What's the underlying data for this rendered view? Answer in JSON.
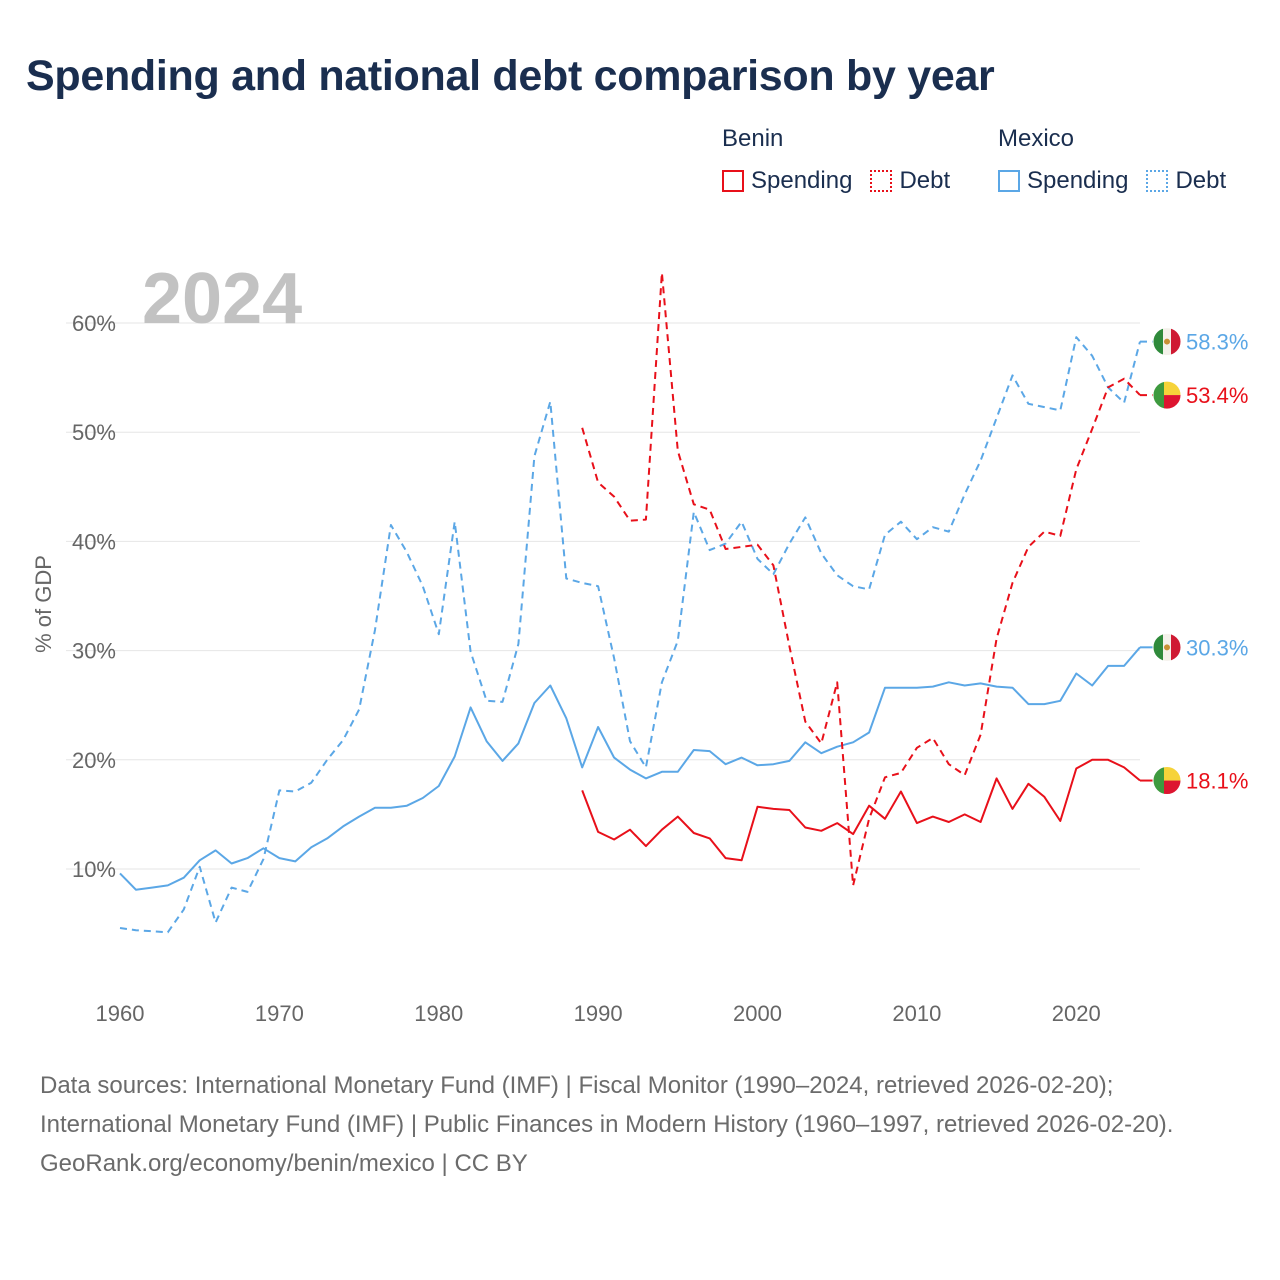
{
  "title": "Spending and national debt comparison by year",
  "legend": {
    "groups": [
      {
        "country": "Benin",
        "color": "#e8101a",
        "items": [
          {
            "label": "Spending",
            "style": "solid"
          },
          {
            "label": "Debt",
            "style": "dotted"
          }
        ]
      },
      {
        "country": "Mexico",
        "color": "#5ba7e6",
        "items": [
          {
            "label": "Spending",
            "style": "solid"
          },
          {
            "label": "Debt",
            "style": "dotted"
          }
        ]
      }
    ]
  },
  "footer": {
    "sources": "Data sources: International Monetary Fund (IMF) | Fiscal Monitor (1990–2024, retrieved 2026-02-20); International Monetary Fund (IMF) | Public Finances in Modern History (1960–1997, retrieved 2026-02-20).",
    "credit": "GeoRank.org/economy/benin/mexico | CC BY"
  },
  "chart_data": {
    "type": "line",
    "year_label": "2024",
    "ylabel": "% of GDP",
    "xlim": [
      1960,
      2024
    ],
    "ylim": [
      0,
      62
    ],
    "x_ticks": [
      "1960",
      "1970",
      "1980",
      "1990",
      "2000",
      "2010",
      "2020"
    ],
    "y_ticks": [
      "10%",
      "20%",
      "30%",
      "40%",
      "50%",
      "60%"
    ],
    "grid": true,
    "series": [
      {
        "name": "Mexico Debt",
        "country": "Mexico",
        "metric": "Debt",
        "color": "#5ba7e6",
        "dash": true,
        "start_year": 1960,
        "values": [
          4.6,
          4.4,
          4.3,
          4.2,
          6.3,
          10.2,
          5.1,
          8.3,
          7.9,
          10.9,
          17.2,
          17.1,
          17.9,
          20.0,
          21.8,
          24.6,
          31.9,
          41.5,
          39.0,
          35.9,
          31.5,
          41.8,
          29.9,
          25.4,
          25.3,
          30.6,
          47.8,
          52.8,
          36.6,
          36.2,
          35.9,
          29.3,
          21.7,
          19.3,
          27.1,
          30.9,
          42.7,
          39.2,
          39.8,
          41.8,
          38.4,
          37.0,
          39.8,
          42.2,
          38.9,
          36.9,
          35.9,
          35.6,
          40.6,
          41.8,
          40.2,
          41.3,
          40.9,
          44.3,
          47.4,
          51.3,
          55.2,
          52.6,
          52.3,
          52.0,
          58.7,
          57.0,
          54.1,
          52.7,
          58.3
        ]
      },
      {
        "name": "Mexico Spending",
        "country": "Mexico",
        "metric": "Spending",
        "color": "#5ba7e6",
        "dash": false,
        "start_year": 1960,
        "values": [
          9.6,
          8.1,
          8.3,
          8.5,
          9.2,
          10.8,
          11.7,
          10.5,
          11.0,
          11.9,
          11.0,
          10.7,
          12.0,
          12.8,
          13.9,
          14.8,
          15.6,
          15.6,
          15.8,
          16.5,
          17.6,
          20.3,
          24.8,
          21.7,
          19.9,
          21.5,
          25.2,
          26.8,
          23.8,
          19.3,
          23.0,
          20.2,
          19.1,
          18.3,
          18.9,
          18.9,
          20.9,
          20.8,
          19.6,
          20.2,
          19.5,
          19.6,
          19.9,
          21.6,
          20.6,
          21.2,
          21.6,
          22.5,
          26.6,
          26.6,
          26.6,
          26.7,
          27.1,
          26.8,
          27.0,
          26.7,
          26.6,
          25.1,
          25.1,
          25.4,
          27.9,
          26.8,
          28.6,
          28.6,
          30.3
        ]
      },
      {
        "name": "Benin Debt",
        "country": "Benin",
        "metric": "Debt",
        "color": "#e8101a",
        "dash": true,
        "start_year": 1989,
        "values": [
          50.4,
          45.4,
          44.1,
          41.9,
          42.0,
          64.6,
          48.3,
          43.4,
          42.9,
          39.3,
          39.5,
          39.7,
          37.8,
          30.4,
          23.5,
          21.5,
          27.1,
          8.5,
          14.6,
          18.4,
          18.8,
          21.1,
          22.0,
          19.6,
          18.6,
          22.3,
          31.1,
          36.2,
          39.5,
          40.9,
          40.5,
          46.6,
          50.3,
          54.1,
          54.9,
          53.4
        ]
      },
      {
        "name": "Benin Spending",
        "country": "Benin",
        "metric": "Spending",
        "color": "#e8101a",
        "dash": false,
        "start_year": 1989,
        "values": [
          17.2,
          13.4,
          12.7,
          13.6,
          12.1,
          13.6,
          14.8,
          13.3,
          12.8,
          11.0,
          10.8,
          15.7,
          15.5,
          15.4,
          13.8,
          13.5,
          14.2,
          13.2,
          15.8,
          14.6,
          17.1,
          14.2,
          14.8,
          14.3,
          15.0,
          14.3,
          18.3,
          15.5,
          17.8,
          16.6,
          14.4,
          19.2,
          20.0,
          20.0,
          19.3,
          18.1
        ]
      }
    ],
    "end_labels": [
      {
        "text": "58.3%",
        "series": "Mexico Debt",
        "flag": "mexico-flag-icon"
      },
      {
        "text": "53.4%",
        "series": "Benin Debt",
        "flag": "benin-flag-icon"
      },
      {
        "text": "30.3%",
        "series": "Mexico Spending",
        "flag": "mexico-flag-icon"
      },
      {
        "text": "18.1%",
        "series": "Benin Spending",
        "flag": "benin-flag-icon"
      }
    ]
  }
}
